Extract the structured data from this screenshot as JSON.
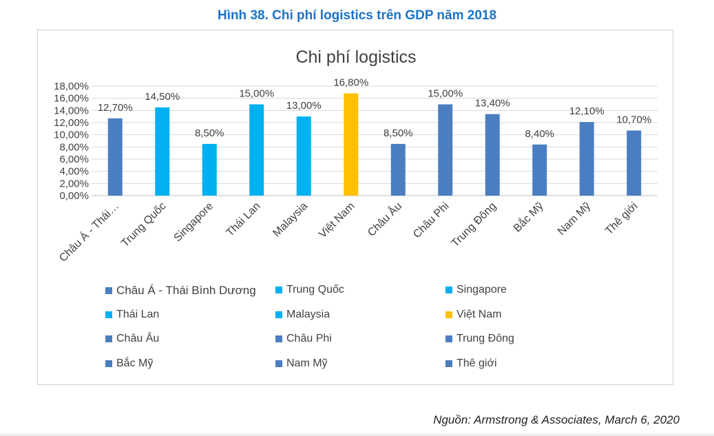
{
  "figure_title": "Hình 38. Chi phí logistics trên GDP năm 2018",
  "source": "Nguồn: Armstrong & Associates, March 6, 2020",
  "colors": {
    "dark_blue": "#4a7ec0",
    "light_blue": "#00b0f0",
    "orange": "#ffc000",
    "title_blue": "#1a73c8"
  },
  "chart_data": {
    "type": "bar",
    "title": "Chi phí logistics",
    "xlabel": "",
    "ylabel": "",
    "ylim": [
      0,
      18
    ],
    "yticks": [
      "0,00%",
      "2,00%",
      "4,00%",
      "6,00%",
      "8,00%",
      "10,00%",
      "12,00%",
      "14,00%",
      "16,00%",
      "18,00%"
    ],
    "grid": true,
    "categories": [
      "Châu Á - Thái Bình Dương",
      "Trung Quốc",
      "Singapore",
      "Thái Lan",
      "Malaysia",
      "Việt Nam",
      "Châu Âu",
      "Châu Phi",
      "Trung Đông",
      "Bắc Mỹ",
      "Nam Mỹ",
      "Thê giới"
    ],
    "tick_labels": [
      "Châu Á - Thái…",
      "Trung Quốc",
      "Singapore",
      "Thái Lan",
      "Malaysia",
      "Việt Nam",
      "Châu Âu",
      "Châu Phi",
      "Trung Đông",
      "Bắc Mỹ",
      "Nam Mỹ",
      "Thê giới"
    ],
    "values": [
      12.7,
      14.5,
      8.5,
      15.0,
      13.0,
      16.8,
      8.5,
      15.0,
      13.4,
      8.4,
      12.1,
      10.7
    ],
    "data_labels": [
      "12,70%",
      "14,50%",
      "8,50%",
      "15,00%",
      "13,00%",
      "16,80%",
      "8,50%",
      "15,00%",
      "13,40%",
      "8,40%",
      "12,10%",
      "10,70%"
    ],
    "bar_colors": [
      "#4a7ec0",
      "#00b0f0",
      "#00b0f0",
      "#00b0f0",
      "#00b0f0",
      "#ffc000",
      "#4a7ec0",
      "#4a7ec0",
      "#4a7ec0",
      "#4a7ec0",
      "#4a7ec0",
      "#4a7ec0"
    ],
    "legend": [
      {
        "label": "Châu Á - Thái Bình Dương",
        "color": "#4a7ec0"
      },
      {
        "label": "Trung Quốc",
        "color": "#00b0f0"
      },
      {
        "label": "Singapore",
        "color": "#00b0f0"
      },
      {
        "label": "Thái Lan",
        "color": "#00b0f0"
      },
      {
        "label": "Malaysia",
        "color": "#00b0f0"
      },
      {
        "label": "Việt Nam",
        "color": "#ffc000"
      },
      {
        "label": "Châu Âu",
        "color": "#4a7ec0"
      },
      {
        "label": "Châu Phi",
        "color": "#4a7ec0"
      },
      {
        "label": "Trung Đông",
        "color": "#4a7ec0"
      },
      {
        "label": "Bắc Mỹ",
        "color": "#4a7ec0"
      },
      {
        "label": "Nam Mỹ",
        "color": "#4a7ec0"
      },
      {
        "label": "Thê giới",
        "color": "#4a7ec0"
      }
    ],
    "legend_position": "bottom"
  }
}
